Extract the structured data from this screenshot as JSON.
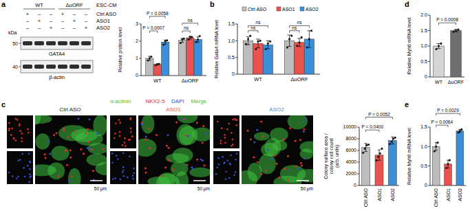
{
  "figure": {
    "panel_labels": [
      "a",
      "b",
      "c",
      "d",
      "e"
    ],
    "blot": {
      "groups": [
        "WT",
        "ΔuORF"
      ],
      "condition": "ESC-CM",
      "rows": [
        {
          "label": "Ctrl ASO",
          "signs": [
            "+",
            "–",
            "–",
            "+",
            "–",
            "–"
          ]
        },
        {
          "label": "ASO1",
          "signs": [
            "–",
            "+",
            "–",
            "–",
            "+",
            "–"
          ]
        },
        {
          "label": "ASO2",
          "signs": [
            "–",
            "–",
            "+",
            "–",
            "–",
            "+"
          ]
        }
      ],
      "unit": "kDa",
      "blots": [
        {
          "label": "GATA4",
          "marker": "50"
        },
        {
          "label": "β-actin",
          "marker": "40"
        }
      ]
    },
    "micrographs": {
      "stains": [
        {
          "label": "α-actinin",
          "color": "#3fbf3f"
        },
        {
          "label": "NKX2-5",
          "color": "#e0302a"
        },
        {
          "label": "DAPI",
          "color": "#3050d0"
        },
        {
          "label": "Merge",
          "color": "#3fbf3f"
        }
      ],
      "conditions": [
        {
          "label": "Ctrl ASO",
          "color": "#222222"
        },
        {
          "label": "ASO1",
          "color": "#e8534f"
        },
        {
          "label": "ASO2",
          "color": "#3b8fd9"
        }
      ],
      "scale_bar": "50 μm"
    }
  },
  "chart_data": [
    {
      "type": "bar",
      "ylabel": [
        "Relative protein level"
      ],
      "categories": [
        "WT",
        "ΔuORF"
      ],
      "series": [
        {
          "color": "#bdbdbd",
          "values": [
            1.0,
            2.05
          ],
          "errors": [
            0.12,
            0.12
          ],
          "points": [
            [
              0.88,
              1.0,
              1.1
            ],
            [
              1.9,
              2.1,
              2.15
            ]
          ]
        },
        {
          "color": "#e8534f",
          "values": [
            0.65,
            2.2
          ],
          "errors": [
            0.04,
            0.08
          ],
          "points": [
            [
              0.6,
              0.66,
              0.68
            ],
            [
              2.1,
              2.25,
              2.25
            ]
          ]
        },
        {
          "color": "#3b8fd9",
          "values": [
            1.95,
            2.1
          ],
          "errors": [
            0.12,
            0.15
          ],
          "points": [
            [
              1.8,
              2.0,
              2.05
            ],
            [
              1.95,
              2.1,
              2.3
            ]
          ]
        }
      ],
      "ylim": [
        0,
        3
      ],
      "yticks": [
        0,
        1,
        2,
        3
      ],
      "annotations": [
        {
          "text": "P = 0.0058",
          "from": 0,
          "to": 2,
          "y": 3.45
        },
        {
          "text": "P = 0.0007",
          "from": 0,
          "to": 1,
          "y": 2.6
        },
        {
          "text": "ns",
          "from": 3,
          "to": 4,
          "y": 2.6
        },
        {
          "text": "ns",
          "from": 3,
          "to": 5,
          "y": 3.05
        }
      ]
    },
    {
      "type": "bar",
      "ylabel": [
        "Relative Gata4 mRNA level"
      ],
      "categories": [
        "WT",
        "ΔuORF"
      ],
      "legend": "top",
      "series": [
        {
          "name": "Ctrl ASO",
          "color": "#bdbdbd",
          "values": [
            1.0,
            1.0
          ],
          "errors": [
            0.12,
            0.17
          ],
          "points": [
            [
              0.9,
              1.05,
              1.15
            ],
            [
              0.8,
              1.05,
              1.15
            ]
          ]
        },
        {
          "name": "ASO1",
          "color": "#e8534f",
          "values": [
            0.92,
            0.95
          ],
          "errors": [
            0.13,
            0.12
          ],
          "points": [
            [
              0.75,
              0.98,
              1.0
            ],
            [
              0.85,
              0.95,
              1.1
            ]
          ]
        },
        {
          "name": "ASO2",
          "color": "#3b8fd9",
          "values": [
            0.88,
            1.05
          ],
          "errors": [
            0.12,
            0.25
          ],
          "points": [
            [
              0.75,
              0.92,
              0.98
            ],
            [
              0.8,
              1.05,
              1.3
            ]
          ]
        }
      ],
      "ylim": [
        0,
        1.5
      ],
      "yticks": [
        0,
        0.5,
        {
          "value": 1,
          "label": "1.0"
        },
        1.5
      ],
      "annotations": [
        {
          "text": "ns",
          "from": 0,
          "to": 1,
          "y": 1.3
        },
        {
          "text": "ns",
          "from": 0,
          "to": 2,
          "y": 1.45
        },
        {
          "text": "ns",
          "from": 3,
          "to": 4,
          "y": 1.3
        },
        {
          "text": "ns",
          "from": 3,
          "to": 5,
          "y": 1.45
        }
      ]
    },
    {
      "type": "bar",
      "ylabel": [
        "Colony surface area /",
        "colony cell count",
        "(arb. units)"
      ],
      "categories": [
        "Ctrl ASO",
        "ASO1",
        "ASO2"
      ],
      "colors": [
        "#bdbdbd",
        "#e8534f",
        "#3b8fd9"
      ],
      "values": [
        6500,
        5200,
        7700
      ],
      "errors": [
        700,
        900,
        600
      ],
      "points": [
        [
          5600,
          6300,
          6900,
          7000
        ],
        [
          4300,
          4900,
          5500,
          6300
        ],
        [
          7100,
          7500,
          8000,
          8200
        ]
      ],
      "ylim": [
        0,
        10000
      ],
      "yticks": [
        0,
        2000,
        4000,
        6000,
        8000,
        10000
      ],
      "annotations": [
        {
          "text": "P = 0.0052",
          "from": 0,
          "to": 2,
          "y": 11700
        },
        {
          "text": "P = 0.0400",
          "from": 0,
          "to": 1,
          "y": 9500
        }
      ]
    },
    {
      "type": "bar",
      "ylabel": [
        "Relative Myh6 mRNA level"
      ],
      "categories": [
        "WT",
        "ΔuORF"
      ],
      "colors": [
        "#d4d4d4",
        "#6e6e6e"
      ],
      "values": [
        1.0,
        1.5
      ],
      "errors": [
        0.08,
        0.04
      ],
      "points": [
        [
          0.9,
          1.0,
          1.08
        ],
        [
          1.46,
          1.5,
          1.53
        ]
      ],
      "ylim": [
        0,
        2
      ],
      "yticks": [
        0,
        0.5,
        {
          "value": 1,
          "label": "1.0"
        },
        1.5,
        {
          "value": 2,
          "label": "2.0"
        }
      ],
      "annotations": [
        {
          "text": "P = 0.0008",
          "from": 0,
          "to": 1,
          "y": 1.75
        }
      ]
    },
    {
      "type": "bar",
      "ylabel": [
        "Relative Myh6 mRNA level"
      ],
      "categories": [
        "Ctrl ASO",
        "ASO1",
        "ASO2"
      ],
      "colors": [
        "#bdbdbd",
        "#e8534f",
        "#3b8fd9"
      ],
      "values": [
        1.0,
        0.55,
        1.4
      ],
      "errors": [
        0.1,
        0.1,
        0.04
      ],
      "points": [
        [
          0.88,
          1.0,
          1.1
        ],
        [
          0.45,
          0.55,
          0.65
        ],
        [
          1.36,
          1.4,
          1.44
        ]
      ],
      "ylim": [
        0,
        1.5
      ],
      "yticks": [
        0,
        0.5,
        {
          "value": 1,
          "label": "1.0"
        },
        1.5
      ],
      "annotations": [
        {
          "text": "P = 0.0064",
          "from": 0,
          "to": 1,
          "y": 1.55
        },
        {
          "text": "P = 0.0029",
          "from": 0,
          "to": 2,
          "y": 1.85
        }
      ]
    }
  ]
}
